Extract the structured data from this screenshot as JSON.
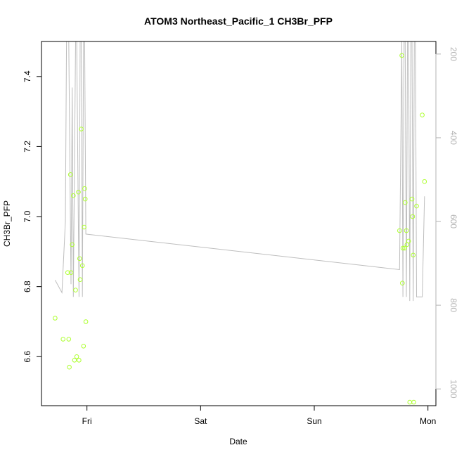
{
  "chart_data": {
    "type": "scatter",
    "title": "ATOM3 Northeast_Pacific_1 CH3Br_PFP",
    "xlabel": "Date",
    "ylabel": "CH3Br_PFP",
    "x_unit": "days since Thursday 00:00",
    "xlim": [
      0.6,
      4.07
    ],
    "ylim": [
      6.46,
      7.5
    ],
    "x_ticks": [
      {
        "value": 1,
        "label": "Fri"
      },
      {
        "value": 2,
        "label": "Sat"
      },
      {
        "value": 3,
        "label": "Sun"
      },
      {
        "value": 4,
        "label": "Mon"
      }
    ],
    "y_ticks": [
      6.6,
      6.8,
      7.0,
      7.2,
      7.4
    ],
    "y2_ticks": [
      200,
      400,
      600,
      800,
      1000
    ],
    "y2lim": [
      170,
      1040
    ],
    "y2_reversed": true,
    "grid": false,
    "colors": {
      "points": "#adff2f",
      "line": "#bebebe",
      "axis": "#000000",
      "right_axis": "#b3b3b3"
    },
    "series": [
      {
        "marker": "circle-open",
        "points": [
          [
            0.72,
            6.71
          ],
          [
            0.79,
            6.65
          ],
          [
            0.83,
            6.84
          ],
          [
            0.84,
            6.65
          ],
          [
            0.845,
            6.57
          ],
          [
            0.855,
            7.12
          ],
          [
            0.86,
            6.84
          ],
          [
            0.87,
            6.92
          ],
          [
            0.88,
            7.06
          ],
          [
            0.89,
            6.59
          ],
          [
            0.9,
            6.79
          ],
          [
            0.91,
            6.6
          ],
          [
            0.925,
            7.07
          ],
          [
            0.93,
            6.59
          ],
          [
            0.935,
            6.88
          ],
          [
            0.94,
            6.82
          ],
          [
            0.95,
            7.25
          ],
          [
            0.96,
            6.86
          ],
          [
            0.97,
            6.63
          ],
          [
            0.975,
            6.97
          ],
          [
            0.98,
            7.08
          ],
          [
            0.985,
            7.05
          ],
          [
            0.99,
            6.7
          ],
          [
            3.75,
            6.96
          ],
          [
            3.77,
            7.46
          ],
          [
            3.775,
            6.81
          ],
          [
            3.78,
            6.91
          ],
          [
            3.795,
            6.91
          ],
          [
            3.8,
            7.04
          ],
          [
            3.81,
            6.96
          ],
          [
            3.815,
            6.92
          ],
          [
            3.83,
            6.93
          ],
          [
            3.84,
            6.47
          ],
          [
            3.86,
            7.05
          ],
          [
            3.865,
            7.0
          ],
          [
            3.87,
            6.89
          ],
          [
            3.875,
            6.47
          ],
          [
            3.9,
            7.03
          ],
          [
            3.95,
            7.29
          ],
          [
            3.97,
            7.1
          ]
        ]
      },
      {
        "axis": "right",
        "points": [
          [
            0.72,
            740
          ],
          [
            0.78,
            770
          ],
          [
            0.81,
            600
          ],
          [
            0.82,
            170
          ],
          [
            0.84,
            170
          ],
          [
            0.86,
            750
          ],
          [
            0.87,
            280
          ],
          [
            0.88,
            780
          ],
          [
            0.9,
            170
          ],
          [
            0.91,
            170
          ],
          [
            0.93,
            780
          ],
          [
            0.94,
            170
          ],
          [
            0.95,
            170
          ],
          [
            0.96,
            780
          ],
          [
            0.97,
            170
          ],
          [
            0.98,
            170
          ],
          [
            0.99,
            630
          ],
          [
            3.75,
            715
          ],
          [
            3.77,
            170
          ],
          [
            3.78,
            780
          ],
          [
            3.79,
            170
          ],
          [
            3.8,
            170
          ],
          [
            3.81,
            780
          ],
          [
            3.82,
            170
          ],
          [
            3.83,
            170
          ],
          [
            3.84,
            790
          ],
          [
            3.85,
            170
          ],
          [
            3.86,
            170
          ],
          [
            3.87,
            790
          ],
          [
            3.88,
            170
          ],
          [
            3.89,
            170
          ],
          [
            3.9,
            780
          ],
          [
            3.95,
            780
          ],
          [
            3.97,
            540
          ]
        ]
      }
    ]
  }
}
